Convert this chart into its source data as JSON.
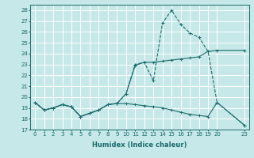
{
  "xlabel": "Humidex (Indice chaleur)",
  "bg_color": "#c6e8e8",
  "grid_color": "#ffffff",
  "line_color": "#1a6b6b",
  "xlim": [
    -0.5,
    23.5
  ],
  "ylim": [
    17,
    28.5
  ],
  "xticks": [
    0,
    1,
    2,
    3,
    4,
    5,
    6,
    7,
    8,
    9,
    10,
    11,
    12,
    13,
    14,
    15,
    16,
    17,
    18,
    19,
    20,
    23
  ],
  "yticks": [
    17,
    18,
    19,
    20,
    21,
    22,
    23,
    24,
    25,
    26,
    27,
    28
  ],
  "line1_x": [
    0,
    1,
    2,
    3,
    4,
    5,
    6,
    7,
    8,
    9,
    10,
    11,
    12,
    13,
    14,
    15,
    16,
    17,
    18,
    19,
    20,
    23
  ],
  "line1_y": [
    19.5,
    18.8,
    19.0,
    19.3,
    19.1,
    18.2,
    18.5,
    18.8,
    19.3,
    19.4,
    20.3,
    23.0,
    23.2,
    21.5,
    26.8,
    28.0,
    26.7,
    25.9,
    25.5,
    24.2,
    19.5,
    17.4
  ],
  "line2_x": [
    0,
    1,
    2,
    3,
    4,
    5,
    6,
    7,
    8,
    9,
    10,
    11,
    12,
    13,
    14,
    15,
    16,
    17,
    18,
    19,
    20,
    23
  ],
  "line2_y": [
    19.5,
    18.8,
    19.0,
    19.3,
    19.1,
    18.2,
    18.5,
    18.8,
    19.3,
    19.4,
    20.3,
    22.9,
    23.2,
    23.2,
    23.3,
    23.4,
    23.5,
    23.6,
    23.7,
    24.2,
    24.3,
    24.3
  ],
  "line3_x": [
    0,
    1,
    2,
    3,
    4,
    5,
    6,
    7,
    8,
    9,
    10,
    11,
    12,
    13,
    14,
    15,
    16,
    17,
    18,
    19,
    20,
    23
  ],
  "line3_y": [
    19.5,
    18.8,
    19.0,
    19.3,
    19.1,
    18.2,
    18.5,
    18.8,
    19.3,
    19.4,
    19.4,
    19.3,
    19.2,
    19.1,
    19.0,
    18.8,
    18.6,
    18.4,
    18.3,
    18.2,
    19.5,
    17.4
  ]
}
